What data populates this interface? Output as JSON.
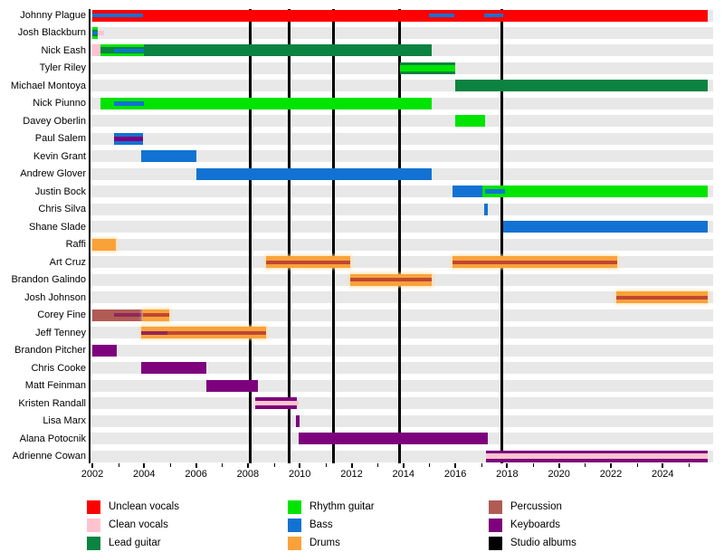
{
  "chart_data": {
    "type": "timeline",
    "subject": "Band members and studio albums timeline",
    "x_axis": {
      "start_year": 2002,
      "end_year": 2025.75,
      "major_tick_years": [
        2002,
        2004,
        2006,
        2008,
        2010,
        2012,
        2014,
        2016,
        2018,
        2020,
        2022,
        2024
      ],
      "minor_tick_years": [
        2003,
        2005,
        2007,
        2009,
        2011,
        2013,
        2015,
        2017,
        2019,
        2021,
        2023,
        2025
      ]
    },
    "albums": {
      "legend_label": "Studio albums",
      "release_years": [
        2008.1,
        2009.6,
        2011.3,
        2013.85,
        2017.8
      ]
    },
    "members": [
      {
        "name": "Johnny Plague",
        "segments": [
          [
            "unclean_vocals",
            2002,
            2025.75,
            0,
            100
          ],
          [
            "bass",
            2002,
            2003.95,
            32,
            36
          ],
          [
            "bass",
            2015.0,
            2015.95,
            32,
            36
          ],
          [
            "bass",
            2017.1,
            2017.85,
            32,
            36
          ]
        ]
      },
      {
        "name": "Josh Blackburn",
        "segments": [
          [
            "lead_guitar",
            2002,
            2002.2,
            0,
            100
          ],
          [
            "clean_vocals",
            2002.2,
            2002.45,
            30,
            40
          ],
          [
            "rhythm_guitar",
            2002,
            2002.2,
            0,
            23
          ],
          [
            "rhythm_guitar",
            2002,
            2002.2,
            77,
            23
          ],
          [
            "bass",
            2002,
            2002.2,
            36,
            28
          ]
        ]
      },
      {
        "name": "Nick Eash",
        "segments": [
          [
            "clean_vocals",
            2002,
            2002.3,
            0,
            100
          ],
          [
            "lead_guitar",
            2002.3,
            2015.1,
            0,
            100
          ],
          [
            "rhythm_guitar",
            2002.3,
            2004.0,
            0,
            23
          ],
          [
            "rhythm_guitar",
            2002.3,
            2004.0,
            77,
            23
          ],
          [
            "bass",
            2002.85,
            2004.0,
            32,
            36
          ]
        ]
      },
      {
        "name": "Tyler Riley",
        "segments": [
          [
            "lead_guitar",
            2013.85,
            2016.0,
            0,
            100
          ],
          [
            "rhythm_guitar",
            2013.85,
            2016.0,
            25,
            50
          ]
        ]
      },
      {
        "name": "Michael Montoya",
        "segments": [
          [
            "lead_guitar",
            2016.0,
            2025.75,
            0,
            100
          ]
        ]
      },
      {
        "name": "Nick Piunno",
        "segments": [
          [
            "rhythm_guitar",
            2002.3,
            2015.1,
            0,
            100
          ],
          [
            "bass",
            2002.85,
            2004.0,
            32,
            36
          ]
        ]
      },
      {
        "name": "Davey Oberlin",
        "segments": [
          [
            "rhythm_guitar",
            2016.0,
            2017.15,
            0,
            100
          ]
        ]
      },
      {
        "name": "Paul Salem",
        "segments": [
          [
            "bass",
            2002.85,
            2003.95,
            0,
            100
          ],
          [
            "keyboards",
            2002.85,
            2003.95,
            28,
            44
          ]
        ]
      },
      {
        "name": "Kevin Grant",
        "segments": [
          [
            "bass",
            2003.9,
            2006.0,
            0,
            100
          ]
        ]
      },
      {
        "name": "Andrew Glover",
        "segments": [
          [
            "bass",
            2006.0,
            2015.1,
            0,
            100
          ]
        ]
      },
      {
        "name": "Justin Bock",
        "segments": [
          [
            "bass",
            2015.9,
            2017.05,
            0,
            100
          ],
          [
            "rhythm_guitar",
            2017.05,
            2025.75,
            0,
            100
          ],
          [
            "bass",
            2017.15,
            2017.9,
            32,
            36
          ]
        ]
      },
      {
        "name": "Chris Silva",
        "segments": [
          [
            "bass",
            2017.1,
            2017.25,
            0,
            100
          ]
        ]
      },
      {
        "name": "Shane Slade",
        "segments": [
          [
            "bass",
            2017.85,
            2025.75,
            0,
            100
          ]
        ]
      },
      {
        "name": "Raffi",
        "segments": [
          [
            "drums",
            2002.0,
            2002.9,
            0,
            100
          ]
        ]
      },
      {
        "name": "Art Cruz",
        "segments": [
          [
            "drums",
            2008.7,
            2011.95,
            0,
            100
          ],
          [
            "drums_shade",
            2008.7,
            2011.95,
            35,
            30
          ],
          [
            "drums",
            2015.9,
            2022.25,
            0,
            100
          ],
          [
            "drums_shade",
            2015.9,
            2022.25,
            35,
            30
          ]
        ]
      },
      {
        "name": "Brandon Galindo",
        "segments": [
          [
            "drums",
            2011.95,
            2015.1,
            0,
            100
          ],
          [
            "drums_shade",
            2011.95,
            2015.1,
            35,
            30
          ]
        ]
      },
      {
        "name": "Josh Johnson",
        "segments": [
          [
            "drums",
            2022.2,
            2025.75,
            0,
            100
          ],
          [
            "drums_shade",
            2022.2,
            2025.75,
            35,
            30
          ]
        ]
      },
      {
        "name": "Corey Fine",
        "segments": [
          [
            "percussion",
            2002.0,
            2003.95,
            0,
            100
          ],
          [
            "percussion_shade",
            2002.85,
            2003.95,
            35,
            30
          ],
          [
            "drums",
            2003.95,
            2004.95,
            0,
            100
          ],
          [
            "drums_shade",
            2003.95,
            2004.95,
            35,
            30
          ]
        ]
      },
      {
        "name": "Jeff Tenney",
        "segments": [
          [
            "drums",
            2003.9,
            2008.7,
            0,
            100
          ],
          [
            "percussion_shade",
            2003.9,
            2004.9,
            35,
            30
          ],
          [
            "drums_shade",
            2004.9,
            2008.7,
            35,
            30
          ]
        ]
      },
      {
        "name": "Brandon Pitcher",
        "segments": [
          [
            "keyboards",
            2002.0,
            2002.95,
            0,
            100
          ]
        ]
      },
      {
        "name": "Chris Cooke",
        "segments": [
          [
            "keyboards",
            2003.9,
            2006.4,
            0,
            100
          ]
        ]
      },
      {
        "name": "Matt Feinman",
        "segments": [
          [
            "keyboards",
            2006.4,
            2008.4,
            0,
            100
          ]
        ]
      },
      {
        "name": "Kristen Randall",
        "segments": [
          [
            "keyboards",
            2008.3,
            2009.9,
            0,
            100
          ],
          [
            "clean_vocals",
            2008.3,
            2009.95,
            30,
            40
          ]
        ]
      },
      {
        "name": "Lisa Marx",
        "segments": [
          [
            "keyboards",
            2009.85,
            2010.0,
            0,
            100
          ]
        ]
      },
      {
        "name": "Alana Potocnik",
        "segments": [
          [
            "keyboards",
            2009.95,
            2017.25,
            0,
            100
          ]
        ]
      },
      {
        "name": "Adrienne Cowan",
        "segments": [
          [
            "keyboards",
            2017.2,
            2025.75,
            0,
            100
          ],
          [
            "clean_vocals",
            2017.2,
            2025.75,
            30,
            40
          ]
        ]
      }
    ],
    "legend": {
      "columns": [
        {
          "items": [
            {
              "label": "Unclean vocals",
              "color": "unclean_vocals"
            },
            {
              "label": "Clean vocals",
              "color": "clean_vocals"
            },
            {
              "label": "Lead guitar",
              "color": "lead_guitar"
            }
          ]
        },
        {
          "items": [
            {
              "label": "Rhythm guitar",
              "color": "rhythm_guitar"
            },
            {
              "label": "Bass",
              "color": "bass"
            },
            {
              "label": "Drums",
              "color": "drums"
            }
          ]
        },
        {
          "items": [
            {
              "label": "Percussion",
              "color": "percussion"
            },
            {
              "label": "Keyboards",
              "color": "keyboards"
            },
            {
              "label": "Studio albums",
              "color": "studio_albums"
            }
          ]
        }
      ]
    }
  },
  "colors": {
    "unclean_vocals": "#fe0000",
    "clean_vocals": "#ffc3cf",
    "lead_guitar": "#0b8341",
    "rhythm_guitar": "#00e400",
    "bass": "#1272d3",
    "drums": "#f9a23a",
    "drums_shade": "#bf4733",
    "percussion": "#b05c54",
    "percussion_shade": "#93265b",
    "keyboards": "#7d017d",
    "studio_albums": "#000000",
    "row_track": "#e8e8e8"
  }
}
